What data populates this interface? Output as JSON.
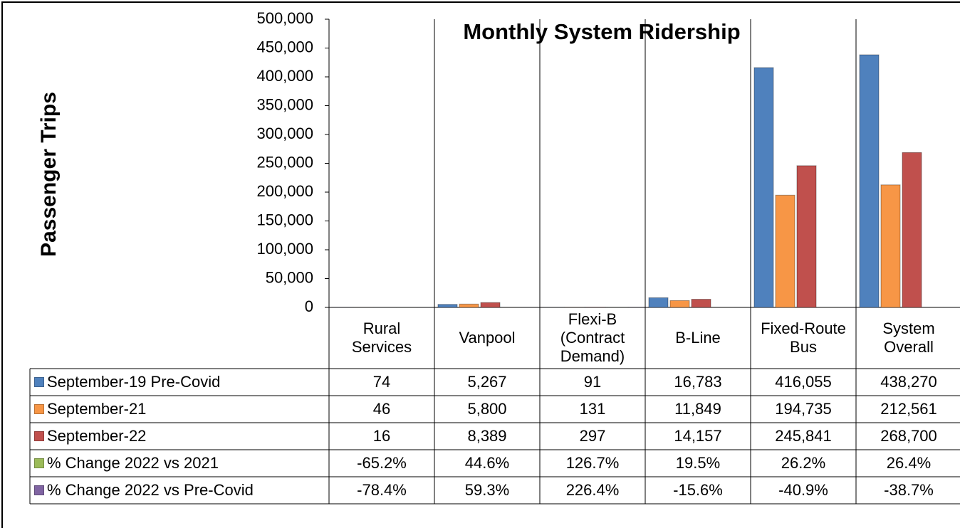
{
  "chart_data": {
    "type": "bar",
    "title": "Monthly System Ridership",
    "y_label": "Passenger Trips",
    "categories": [
      "Rural Services",
      "Vanpool",
      "Flexi-B (Contract Demand)",
      "B-Line",
      "Fixed-Route Bus",
      "System Overall"
    ],
    "ylim": [
      0,
      500000
    ],
    "yticks": [
      0,
      {
        "value": 50000,
        "label": "50,000"
      },
      {
        "value": 100000,
        "label": "100,000"
      },
      {
        "value": 150000,
        "label": "150,000"
      },
      {
        "value": 200000,
        "label": "200,000"
      },
      {
        "value": 250000,
        "label": "250,000"
      },
      {
        "value": 300000,
        "label": "300,000"
      },
      {
        "value": 350000,
        "label": "350,000"
      },
      {
        "value": 400000,
        "label": "400,000"
      },
      {
        "value": 450000,
        "label": "450,000"
      },
      {
        "value": 500000,
        "label": "500,000"
      }
    ],
    "grid": false,
    "series": [
      {
        "name": "September-19 Pre-Covid",
        "color": "#4f81bd",
        "values": [
          74,
          5267,
          91,
          16783,
          416055,
          438270
        ],
        "value_labels": [
          "74",
          "5,267",
          "91",
          "16,783",
          "416,055",
          "438,270"
        ]
      },
      {
        "name": "September-21",
        "color": "#f79646",
        "values": [
          46,
          5800,
          131,
          11849,
          194735,
          212561
        ],
        "value_labels": [
          "46",
          "5,800",
          "131",
          "11,849",
          "194,735",
          "212,561"
        ]
      },
      {
        "name": "September-22",
        "color": "#c0504d",
        "values": [
          16,
          8389,
          297,
          14157,
          245841,
          268700
        ],
        "value_labels": [
          "16",
          "8,389",
          "297",
          "14,157",
          "245,841",
          "268,700"
        ]
      },
      {
        "name": "% Change 2022 vs 2021",
        "color": "#9bbb59",
        "values": [
          -65.2,
          44.6,
          126.7,
          19.5,
          26.2,
          26.4
        ],
        "value_labels": [
          "-65.2%",
          "44.6%",
          "126.7%",
          "19.5%",
          "26.2%",
          "26.4%"
        ]
      },
      {
        "name": "% Change 2022 vs Pre-Covid",
        "color": "#8064a2",
        "values": [
          -78.4,
          59.3,
          226.4,
          -15.6,
          -40.9,
          -38.7
        ],
        "value_labels": [
          "-78.4%",
          "59.3%",
          "226.4%",
          "-15.6%",
          "-40.9%",
          "-38.7%"
        ]
      }
    ]
  }
}
